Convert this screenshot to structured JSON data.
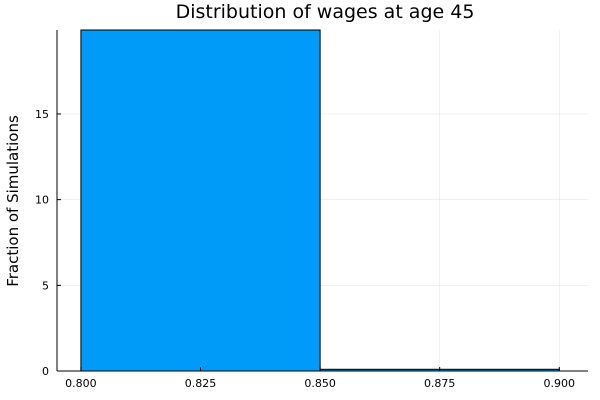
{
  "chart_data": {
    "type": "bar",
    "title": "Distribution of wages at age 45",
    "xlabel": "",
    "ylabel": "Fraction of Simulations",
    "xlim": [
      0.795,
      0.906
    ],
    "ylim": [
      0,
      19.9
    ],
    "x_ticks": [
      "0.800",
      "0.825",
      "0.850",
      "0.875",
      "0.900"
    ],
    "x_tick_values": [
      0.8,
      0.825,
      0.85,
      0.875,
      0.9
    ],
    "y_ticks": [
      "0",
      "5",
      "10",
      "15"
    ],
    "y_tick_values": [
      0,
      5,
      10,
      15
    ],
    "bins": [
      {
        "start": 0.8,
        "end": 0.85,
        "value": 19.9
      },
      {
        "start": 0.85,
        "end": 0.9,
        "value": 0.1
      }
    ],
    "grid": true,
    "legend": "none",
    "bar_color": "#009af9"
  }
}
